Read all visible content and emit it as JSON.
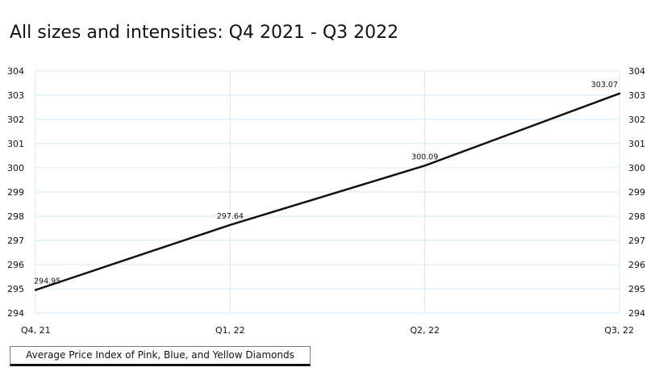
{
  "chart_data": {
    "type": "line",
    "title": "All sizes and intensities: Q4 2021 - Q3 2022",
    "categories": [
      "Q4, 21",
      "Q1, 22",
      "Q2, 22",
      "Q3, 22"
    ],
    "series": [
      {
        "name": "Average Price Index of Pink, Blue, and Yellow Diamonds",
        "values": [
          294.95,
          297.64,
          300.09,
          303.07
        ],
        "labels": [
          "294.95",
          "297.64",
          "300.09",
          "303.07"
        ]
      }
    ],
    "yticks": [
      "304",
      "303",
      "302",
      "301",
      "300",
      "299",
      "298",
      "297",
      "296",
      "295",
      "294"
    ],
    "ylim": [
      294,
      304
    ],
    "grid": true,
    "legend_position": "bottom-left",
    "colors": {
      "line": "#111111",
      "grid": "#d6e9f7"
    }
  }
}
